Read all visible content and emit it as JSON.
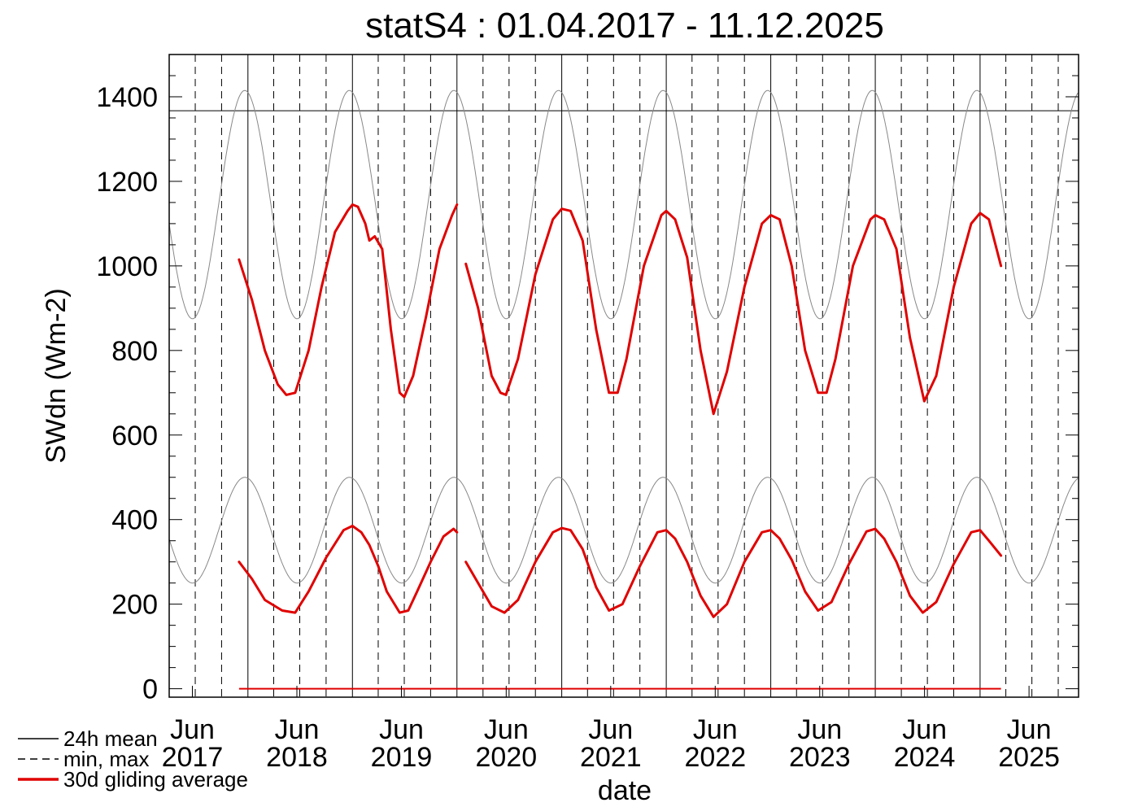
{
  "chart_data": {
    "type": "line",
    "title": "statS4 : 01.04.2017 - 11.12.2025",
    "xlabel": "date",
    "ylabel": "SWdn (Wm-2)",
    "xlim": [
      "2017-04-01",
      "2025-12-11"
    ],
    "ylim": [
      -20,
      1500
    ],
    "y_ticks": [
      0,
      200,
      400,
      600,
      800,
      1000,
      1200,
      1400
    ],
    "y_minor_step": 50,
    "x_ticks": [
      {
        "month": "Jun",
        "year": "2017",
        "date": "2017-06-21"
      },
      {
        "month": "Jun",
        "year": "2018",
        "date": "2018-06-21"
      },
      {
        "month": "Jun",
        "year": "2019",
        "date": "2019-06-21"
      },
      {
        "month": "Jun",
        "year": "2020",
        "date": "2020-06-21"
      },
      {
        "month": "Jun",
        "year": "2021",
        "date": "2021-06-21"
      },
      {
        "month": "Jun",
        "year": "2022",
        "date": "2022-06-21"
      },
      {
        "month": "Jun",
        "year": "2023",
        "date": "2023-06-21"
      },
      {
        "month": "Jun",
        "year": "2024",
        "date": "2024-06-21"
      },
      {
        "month": "Jun",
        "year": "2025",
        "date": "2025-06-21"
      }
    ],
    "solar_constant": 1367,
    "grid": "vertical: solid at year start, dashed at quarter starts",
    "legend_position": "bottom-left",
    "legend": [
      {
        "label": "24h mean",
        "style": "solid",
        "color": "#000000"
      },
      {
        "label": "min, max",
        "style": "dashed",
        "color": "#000000"
      },
      {
        "label": "30d gliding average",
        "style": "solid-thick",
        "color": "#e00000"
      }
    ],
    "series": [
      {
        "legend_index": 2,
        "color": "#e00000",
        "points": [
          [
            "2017-12-01",
            300
          ],
          [
            "2018-01-15",
            260
          ],
          [
            "2018-03-01",
            210
          ],
          [
            "2018-05-01",
            185
          ],
          [
            "2018-06-15",
            180
          ],
          [
            "2018-08-01",
            230
          ],
          [
            "2018-10-01",
            310
          ],
          [
            "2018-12-01",
            375
          ],
          [
            "2019-01-01",
            385
          ],
          [
            "2019-02-01",
            370
          ],
          [
            "2019-03-01",
            340
          ],
          [
            "2019-04-01",
            290
          ],
          [
            "2019-05-01",
            230
          ],
          [
            "2019-06-15",
            180
          ],
          [
            "2019-07-15",
            185
          ],
          [
            "2019-08-15",
            230
          ],
          [
            "2019-10-01",
            300
          ],
          [
            "2019-11-15",
            360
          ],
          [
            "2019-12-20",
            378
          ],
          [
            "2020-01-01",
            370
          ]
        ]
      },
      {
        "legend_index": 2,
        "color": "#e00000",
        "points": [
          [
            "2020-02-01",
            300
          ],
          [
            "2020-03-15",
            250
          ],
          [
            "2020-05-01",
            195
          ],
          [
            "2020-06-15",
            180
          ],
          [
            "2020-08-01",
            210
          ],
          [
            "2020-10-01",
            300
          ],
          [
            "2020-12-01",
            370
          ],
          [
            "2021-01-01",
            380
          ],
          [
            "2021-02-01",
            375
          ],
          [
            "2021-03-15",
            330
          ],
          [
            "2021-05-01",
            240
          ],
          [
            "2021-06-15",
            185
          ],
          [
            "2021-08-01",
            200
          ],
          [
            "2021-10-01",
            290
          ],
          [
            "2021-12-01",
            370
          ],
          [
            "2022-01-01",
            375
          ],
          [
            "2022-02-01",
            355
          ],
          [
            "2022-03-15",
            300
          ],
          [
            "2022-05-01",
            220
          ],
          [
            "2022-06-15",
            170
          ],
          [
            "2022-08-01",
            200
          ],
          [
            "2022-10-01",
            300
          ],
          [
            "2022-12-01",
            370
          ],
          [
            "2023-01-01",
            375
          ],
          [
            "2023-02-01",
            355
          ],
          [
            "2023-03-15",
            305
          ],
          [
            "2023-05-01",
            230
          ],
          [
            "2023-06-15",
            185
          ],
          [
            "2023-08-01",
            205
          ],
          [
            "2023-10-01",
            295
          ],
          [
            "2023-12-01",
            372
          ],
          [
            "2024-01-01",
            378
          ],
          [
            "2024-02-01",
            355
          ],
          [
            "2024-03-15",
            300
          ],
          [
            "2024-05-01",
            220
          ],
          [
            "2024-06-15",
            180
          ],
          [
            "2024-08-01",
            205
          ],
          [
            "2024-10-01",
            295
          ],
          [
            "2024-12-01",
            370
          ],
          [
            "2025-01-01",
            375
          ],
          [
            "2025-02-01",
            350
          ],
          [
            "2025-03-15",
            315
          ]
        ]
      },
      {
        "legend_index": 2,
        "color": "#e00000",
        "points": [
          [
            "2017-12-01",
            1015
          ],
          [
            "2018-01-15",
            920
          ],
          [
            "2018-03-01",
            800
          ],
          [
            "2018-04-15",
            720
          ],
          [
            "2018-05-15",
            695
          ],
          [
            "2018-06-15",
            700
          ],
          [
            "2018-08-01",
            800
          ],
          [
            "2018-09-15",
            950
          ],
          [
            "2018-11-01",
            1080
          ],
          [
            "2018-12-15",
            1130
          ],
          [
            "2019-01-01",
            1145
          ],
          [
            "2019-01-20",
            1140
          ],
          [
            "2019-02-15",
            1100
          ],
          [
            "2019-03-01",
            1060
          ],
          [
            "2019-03-20",
            1070
          ],
          [
            "2019-04-15",
            1040
          ],
          [
            "2019-05-15",
            850
          ],
          [
            "2019-06-15",
            700
          ],
          [
            "2019-07-01",
            690
          ],
          [
            "2019-08-01",
            740
          ],
          [
            "2019-09-15",
            880
          ],
          [
            "2019-11-01",
            1040
          ],
          [
            "2019-12-15",
            1120
          ],
          [
            "2020-01-01",
            1145
          ]
        ]
      },
      {
        "legend_index": 2,
        "color": "#e00000",
        "points": [
          [
            "2020-02-01",
            1005
          ],
          [
            "2020-03-15",
            900
          ],
          [
            "2020-05-01",
            740
          ],
          [
            "2020-06-01",
            700
          ],
          [
            "2020-06-20",
            695
          ],
          [
            "2020-08-01",
            780
          ],
          [
            "2020-10-01",
            980
          ],
          [
            "2020-12-01",
            1110
          ],
          [
            "2021-01-01",
            1135
          ],
          [
            "2021-02-01",
            1130
          ],
          [
            "2021-03-15",
            1060
          ],
          [
            "2021-05-01",
            850
          ],
          [
            "2021-06-15",
            700
          ],
          [
            "2021-07-15",
            700
          ],
          [
            "2021-08-15",
            780
          ],
          [
            "2021-10-15",
            1000
          ],
          [
            "2021-12-15",
            1120
          ],
          [
            "2022-01-01",
            1130
          ],
          [
            "2022-02-01",
            1110
          ],
          [
            "2022-03-15",
            1020
          ],
          [
            "2022-05-01",
            800
          ],
          [
            "2022-06-15",
            650
          ],
          [
            "2022-08-01",
            750
          ],
          [
            "2022-10-01",
            950
          ],
          [
            "2022-12-01",
            1100
          ],
          [
            "2023-01-01",
            1120
          ],
          [
            "2023-02-01",
            1110
          ],
          [
            "2023-03-15",
            1000
          ],
          [
            "2023-05-01",
            800
          ],
          [
            "2023-06-15",
            700
          ],
          [
            "2023-07-15",
            700
          ],
          [
            "2023-08-15",
            780
          ],
          [
            "2023-10-15",
            1000
          ],
          [
            "2023-12-15",
            1110
          ],
          [
            "2024-01-01",
            1120
          ],
          [
            "2024-02-01",
            1110
          ],
          [
            "2024-03-15",
            1040
          ],
          [
            "2024-05-01",
            830
          ],
          [
            "2024-06-20",
            680
          ],
          [
            "2024-08-01",
            740
          ],
          [
            "2024-10-01",
            950
          ],
          [
            "2024-12-01",
            1100
          ],
          [
            "2025-01-01",
            1125
          ],
          [
            "2025-02-01",
            1110
          ],
          [
            "2025-03-15",
            1000
          ]
        ]
      }
    ]
  }
}
